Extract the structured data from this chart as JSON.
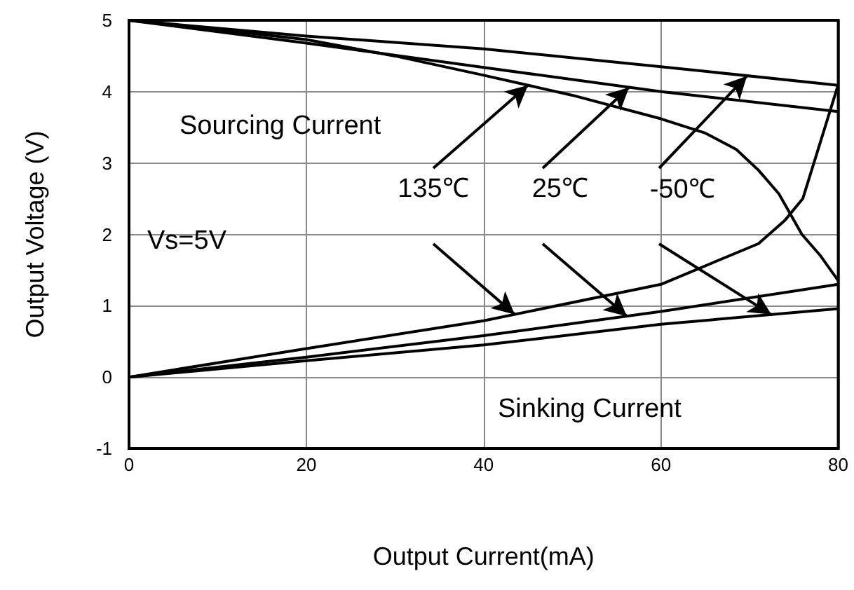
{
  "chart_data": {
    "type": "line",
    "xlabel": "Output Current(mA)",
    "ylabel": "Output Voltage (V)",
    "xlim": [
      0,
      80
    ],
    "xticks": [
      0,
      20,
      40,
      60,
      80
    ],
    "ylim": [
      -1,
      5
    ],
    "yticks": [
      -1,
      0,
      1,
      2,
      3,
      4,
      5
    ],
    "grid": true,
    "marker": "none",
    "line_style": "solid",
    "series": [
      {
        "color": "#000000",
        "x": [
          0,
          10,
          20,
          30,
          40,
          50,
          60,
          65,
          68.5,
          71,
          73.3,
          75.9,
          78,
          80
        ],
        "values": [
          5,
          4.87,
          4.73,
          4.5,
          4.23,
          3.95,
          3.62,
          3.42,
          3.19,
          2.9,
          2.57,
          2.0,
          1.7,
          1.35
        ]
      },
      {
        "color": "#000000",
        "x": [
          0,
          20,
          40,
          60,
          80
        ],
        "values": [
          5,
          4.68,
          4.34,
          4.0,
          3.72
        ]
      },
      {
        "color": "#000000",
        "x": [
          0,
          20,
          40,
          60,
          80
        ],
        "values": [
          5,
          4.78,
          4.6,
          4.35,
          4.09
        ]
      },
      {
        "color": "#000000",
        "x": [
          0,
          20,
          40,
          60,
          71,
          74,
          76,
          78,
          80
        ],
        "values": [
          0,
          0.4,
          0.79,
          1.3,
          1.87,
          2.2,
          2.5,
          3.3,
          4.1
        ]
      },
      {
        "color": "#000000",
        "x": [
          0,
          20,
          40,
          60,
          80
        ],
        "values": [
          0,
          0.28,
          0.58,
          0.92,
          1.3
        ]
      },
      {
        "color": "#000000",
        "x": [
          0,
          20,
          40,
          60,
          80
        ],
        "values": [
          0,
          0.23,
          0.45,
          0.74,
          0.96
        ]
      }
    ],
    "annotations": [
      "Sourcing Current",
      "Vs=5V",
      "Sinking Current",
      {
        "text": "135℃",
        "x": 45,
        "y": 4.09
      },
      {
        "text": "25℃",
        "x": 56.4,
        "y": 4.06
      },
      {
        "text": "-50℃",
        "x": 69.7,
        "y": 4.22
      }
    ]
  }
}
